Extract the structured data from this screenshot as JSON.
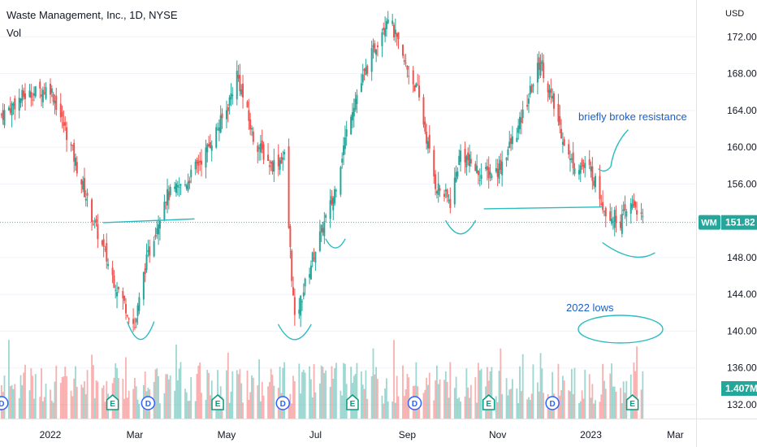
{
  "header": {
    "symbol_title": "Waste Management, Inc., 1D, NYSE",
    "volume_label": "Vol"
  },
  "chart_data": {
    "type": "candlestick",
    "currency": "USD",
    "y_ticks": [
      172,
      168,
      164,
      160,
      156,
      148,
      144,
      140,
      136,
      132
    ],
    "y_tick_labels": [
      "172.00",
      "168.00",
      "164.00",
      "160.00",
      "156.00",
      "148.00",
      "144.00",
      "140.00",
      "136.00",
      "132.00"
    ],
    "y_range": [
      130.5,
      176
    ],
    "x_tick_labels": [
      "2022",
      "Mar",
      "May",
      "Jul",
      "Sep",
      "Nov",
      "2023",
      "Mar"
    ],
    "x_range": [
      "2021-11-30",
      "2023-03-15"
    ],
    "last_price": {
      "label": "WM",
      "value": "151.82",
      "price": 151.82,
      "color": "#26a69a"
    },
    "last_volume": {
      "value": "1.407M",
      "color": "#26a69a"
    },
    "close_series": {
      "dates": [
        "2021-12-01",
        "2021-12-15",
        "2022-01-03",
        "2022-01-14",
        "2022-02-01",
        "2022-02-15",
        "2022-03-01",
        "2022-03-08",
        "2022-03-21",
        "2022-04-04",
        "2022-04-18",
        "2022-05-02",
        "2022-05-09",
        "2022-05-20",
        "2022-06-01",
        "2022-06-10",
        "2022-06-17",
        "2022-06-30",
        "2022-07-13",
        "2022-07-25",
        "2022-08-08",
        "2022-08-19",
        "2022-08-29",
        "2022-09-08",
        "2022-09-20",
        "2022-09-30",
        "2022-10-07",
        "2022-10-21",
        "2022-11-01",
        "2022-11-15",
        "2022-11-30",
        "2022-12-05",
        "2022-12-20",
        "2023-01-03",
        "2023-01-13",
        "2023-01-23",
        "2023-02-01",
        "2023-02-07"
      ],
      "values": [
        163.5,
        165.5,
        166.5,
        161.5,
        152,
        145.5,
        140.5,
        147,
        154.5,
        156,
        159.5,
        164,
        168,
        161,
        158,
        159,
        141,
        148.5,
        154.5,
        164,
        170,
        174.5,
        169.5,
        166,
        156,
        154,
        159.5,
        157,
        157.5,
        162,
        169.5,
        166.5,
        158.5,
        157.5,
        153,
        152,
        154,
        151.8
      ]
    },
    "annotations": [
      {
        "text": "briefly broke resistance"
      },
      {
        "text": "2022 lows"
      }
    ],
    "events": [
      {
        "date": "2021-12-01",
        "type": "D"
      },
      {
        "date": "2022-02-14",
        "type": "E"
      },
      {
        "date": "2022-03-10",
        "type": "D"
      },
      {
        "date": "2022-04-26",
        "type": "E"
      },
      {
        "date": "2022-06-09",
        "type": "D"
      },
      {
        "date": "2022-07-26",
        "type": "E"
      },
      {
        "date": "2022-09-06",
        "type": "D"
      },
      {
        "date": "2022-10-26",
        "type": "E"
      },
      {
        "date": "2022-12-08",
        "type": "D"
      },
      {
        "date": "2023-01-31",
        "type": "E"
      }
    ],
    "colors": {
      "up": "#26a69a",
      "down": "#ef5350",
      "annotation": "#1a5fc9",
      "line": "#2bbcc1"
    }
  }
}
